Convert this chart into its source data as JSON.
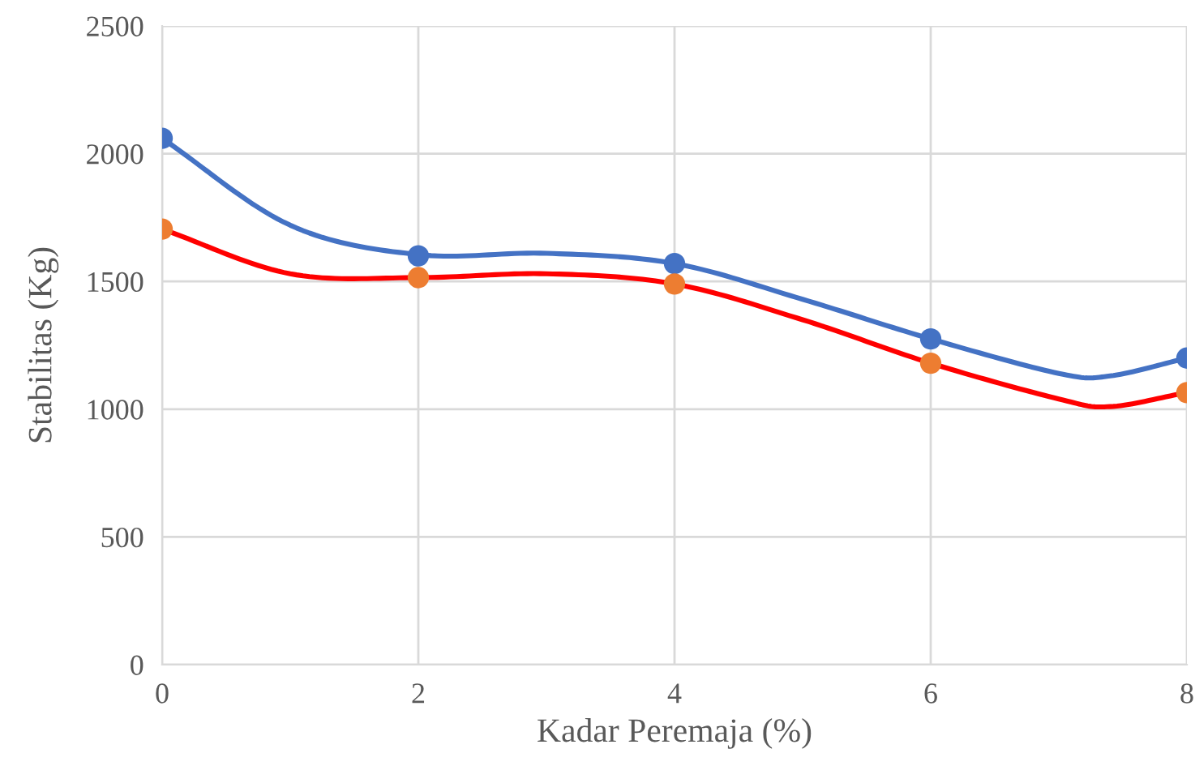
{
  "chart_data": {
    "type": "scatter",
    "xlabel": "Kadar Peremaja (%)",
    "ylabel": "Stabilitas (Kg)",
    "x": [
      0,
      2,
      4,
      6,
      8
    ],
    "series": [
      {
        "type": "line",
        "color": "#4472c4",
        "x": [
          0,
          1,
          2,
          3,
          4,
          5,
          6,
          7,
          7.4,
          8
        ],
        "values": [
          2060,
          1720,
          1605,
          1610,
          1570,
          1430,
          1275,
          1140,
          1130,
          1200
        ]
      },
      {
        "type": "line",
        "color": "#ff0000",
        "x": [
          0,
          1,
          2,
          3,
          4,
          5,
          6,
          7,
          7.4,
          8
        ],
        "values": [
          1705,
          1530,
          1515,
          1530,
          1490,
          1350,
          1180,
          1040,
          1010,
          1065
        ]
      },
      {
        "color": "#4472c4",
        "marker": "circle",
        "values": [
          2060,
          1600,
          1570,
          1275,
          1200
        ]
      },
      {
        "color": "#ed7d31",
        "marker": "circle",
        "values": [
          1705,
          1515,
          1490,
          1180,
          1065
        ]
      }
    ],
    "xlim": [
      0,
      8
    ],
    "xticks": [
      0,
      2,
      4,
      6,
      8
    ],
    "ylim": [
      0,
      2500
    ],
    "yticks": [
      0,
      500,
      1000,
      1500,
      2000,
      2500
    ],
    "grid": true
  }
}
